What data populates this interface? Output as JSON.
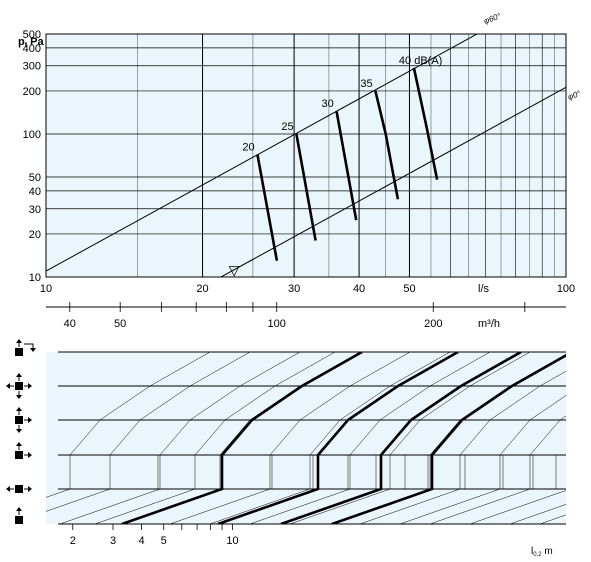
{
  "chart_data": [
    {
      "type": "line",
      "scale": "log-log",
      "ylabel": "p",
      "ylabel_sub": "t",
      "yunit": "Pa",
      "xunit": "l/s",
      "x2unit": "m³/h",
      "xlim": [
        10,
        100
      ],
      "ylim": [
        10,
        500
      ],
      "y_ticks": [
        "10",
        "20",
        "30",
        "40",
        "50",
        "100",
        "200",
        "300",
        "400",
        "500"
      ],
      "x_ticks": [
        "10",
        "20",
        "30",
        "40",
        "50",
        "l/s",
        "100"
      ],
      "x2_ticks": [
        "40",
        "50",
        "100",
        "200",
        "m³/h"
      ],
      "grid": true,
      "background": "#eaf6fb",
      "diagonal_labels": [
        "φ60°",
        "φ0°"
      ],
      "marker": {
        "symbol": "▽",
        "x": 23
      },
      "series": [
        {
          "name": "20",
          "x": [
            25.5,
            27.8
          ],
          "y": [
            72,
            13
          ]
        },
        {
          "name": "25",
          "x": [
            30.3,
            33.0
          ],
          "y": [
            100,
            18
          ]
        },
        {
          "name": "30",
          "x": [
            36.2,
            39.5
          ],
          "y": [
            145,
            25
          ]
        },
        {
          "name": "35",
          "x": [
            43.0,
            45.0,
            47.5
          ],
          "y": [
            200,
            100,
            35
          ]
        },
        {
          "name": "40 dB(A)",
          "x": [
            51.0,
            54.0,
            56.5
          ],
          "y": [
            290,
            110,
            48
          ]
        }
      ]
    },
    {
      "type": "line",
      "xscale": "log",
      "xlabel": "l",
      "xlabel_sub": "0,2",
      "xunit": "m",
      "x_ticks": [
        "2",
        "3",
        "4",
        "5",
        "10"
      ],
      "row_icons": [
        "outlet-pattern-1",
        "outlet-pattern-2",
        "outlet-pattern-3",
        "outlet-pattern-4",
        "outlet-pattern-5",
        "outlet-pattern-6"
      ]
    }
  ],
  "colors": {
    "background": "#eaf6fb",
    "grid": "#000000",
    "curve": "#000000"
  }
}
